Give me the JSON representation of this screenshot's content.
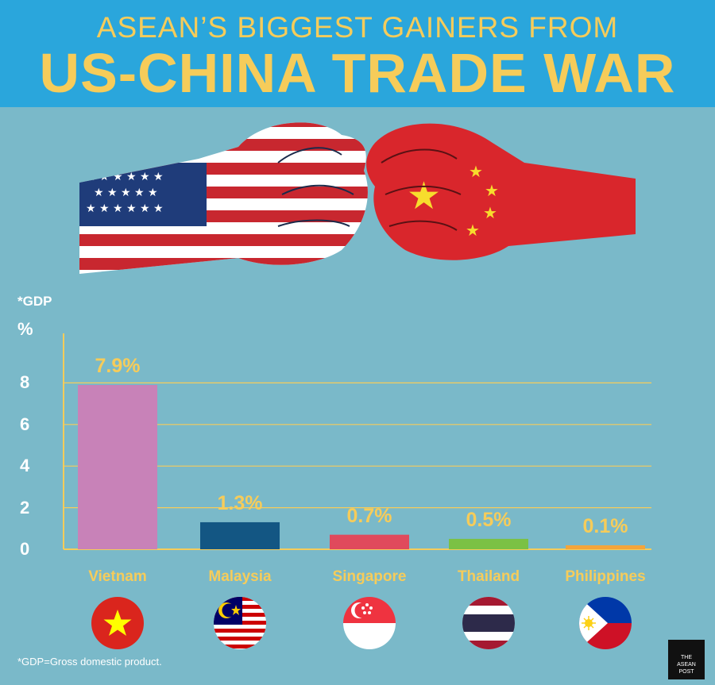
{
  "header": {
    "title_top": "ASEAN’S BIGGEST GAINERS FROM",
    "title_main": "US-CHINA TRADE WAR"
  },
  "illustration": {
    "left_fist": "us-flag-fist-icon",
    "right_fist": "china-flag-fist-icon"
  },
  "chart_data": {
    "type": "bar",
    "title": "",
    "ylabel": "%",
    "measure_tag": "*GDP",
    "categories": [
      "Vietnam",
      "Malaysia",
      "Singapore",
      "Thailand",
      "Philippines"
    ],
    "values": [
      7.9,
      1.3,
      0.7,
      0.5,
      0.1
    ],
    "value_labels": [
      "7.9%",
      "1.3%",
      "0.7%",
      "0.5%",
      "0.1%"
    ],
    "yticks": [
      "0",
      "2",
      "4",
      "6",
      "8"
    ],
    "ylim": [
      0,
      10
    ],
    "grid": true,
    "colors": [
      "#c882b8",
      "#135683",
      "#e04a5c",
      "#7bc144",
      "#f3a53a"
    ]
  },
  "flags": [
    "vietnam-flag-icon",
    "malaysia-flag-icon",
    "singapore-flag-icon",
    "thailand-flag-icon",
    "philippines-flag-icon"
  ],
  "footnote": "*GDP=Gross domestic product.",
  "logo": {
    "line1": "THE",
    "line2": "ASEAN",
    "line3": "POST"
  }
}
